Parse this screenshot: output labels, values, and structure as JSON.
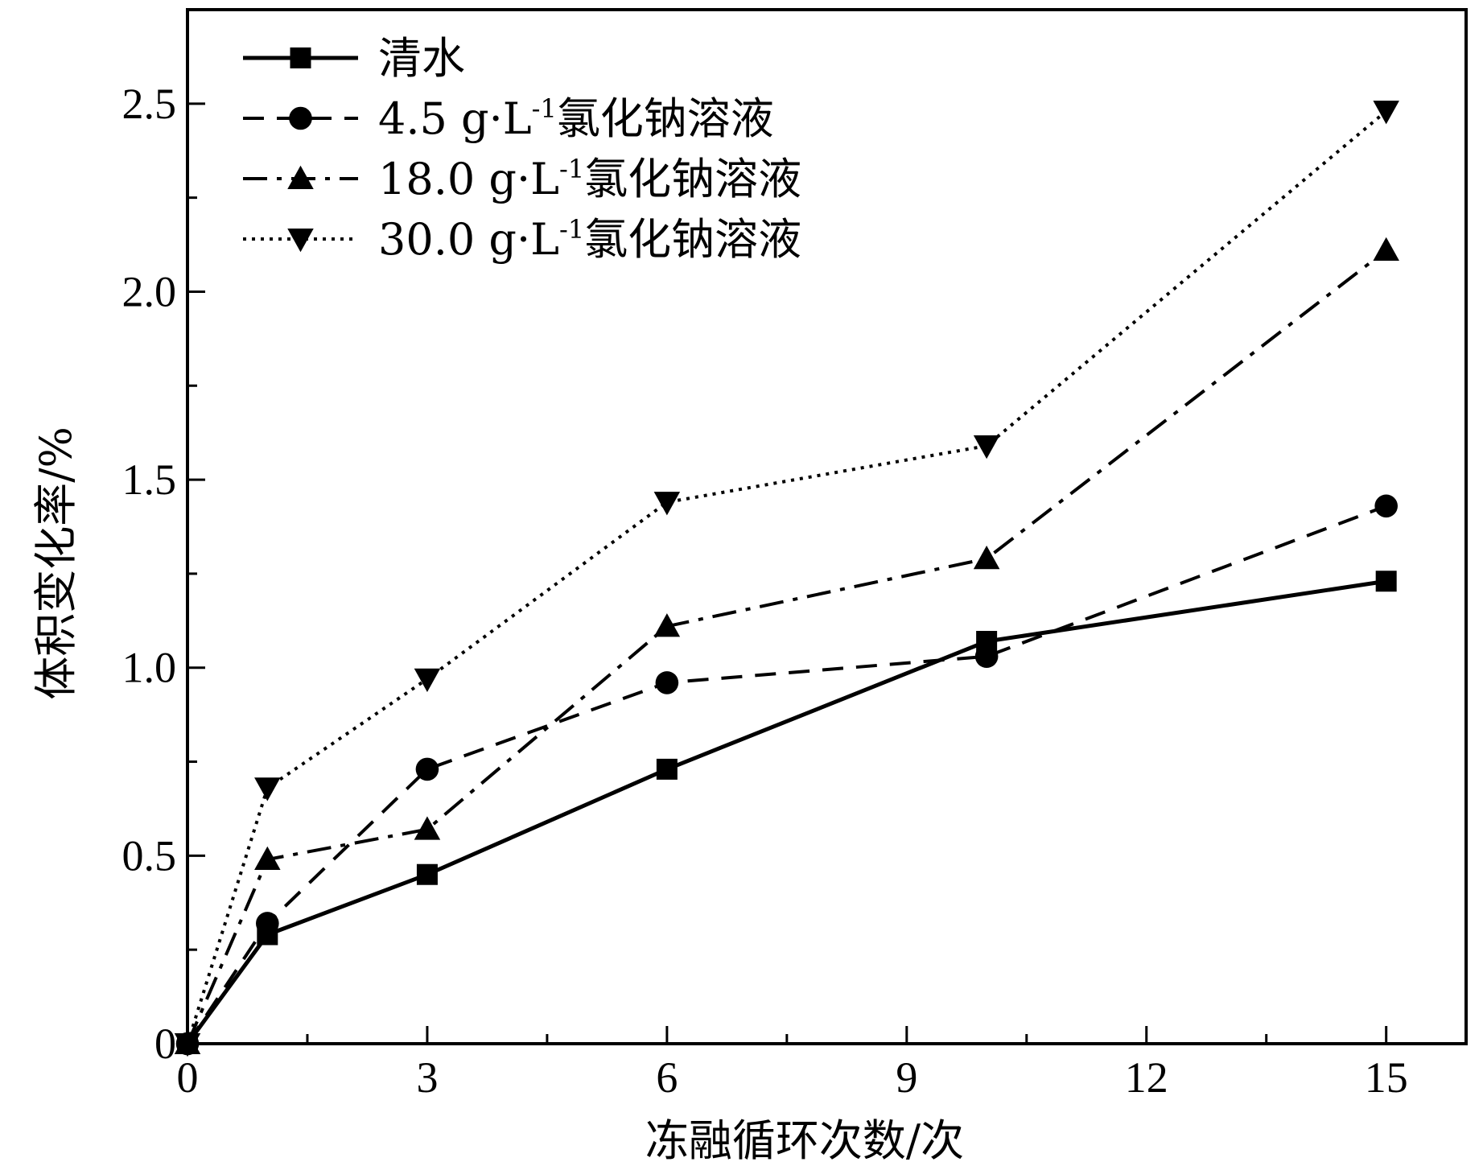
{
  "chart_data": {
    "type": "line",
    "xlabel": "冻融循环次数/次",
    "ylabel": "体积变化率/%",
    "xlim": [
      0,
      16
    ],
    "ylim": [
      0,
      2.75
    ],
    "xticks": [
      0,
      3,
      6,
      9,
      12,
      15
    ],
    "yticks": [
      0,
      0.5,
      1.0,
      1.5,
      2.0,
      2.5
    ],
    "xtick_labels": [
      "0",
      "3",
      "6",
      "9",
      "12",
      "15"
    ],
    "ytick_labels": [
      "0",
      "0.5",
      "1.0",
      "1.5",
      "2.0",
      "2.5"
    ],
    "grid": false,
    "legend_position": "top-left",
    "x": [
      0,
      1,
      3,
      6,
      10,
      15
    ],
    "series": [
      {
        "name": "清水",
        "legend_prefix": "",
        "legend_suffix": "",
        "marker": "square",
        "line_style": "solid",
        "color": "#000000",
        "values": [
          0,
          0.29,
          0.45,
          0.73,
          1.07,
          1.23
        ]
      },
      {
        "name": "4.5 g·L-1氯化钠溶液",
        "legend_prefix": "4.5 g·L",
        "legend_sup": "-1",
        "legend_suffix": "氯化钠溶液",
        "marker": "circle",
        "line_style": "dashed",
        "color": "#000000",
        "values": [
          0,
          0.32,
          0.73,
          0.96,
          1.03,
          1.43
        ]
      },
      {
        "name": "18.0 g·L-1氯化钠溶液",
        "legend_prefix": "18.0 g·L",
        "legend_sup": "-1",
        "legend_suffix": "氯化钠溶液",
        "marker": "triangle-up",
        "line_style": "dashdot",
        "color": "#000000",
        "values": [
          0,
          0.49,
          0.57,
          1.11,
          1.29,
          2.11
        ]
      },
      {
        "name": "30.0 g·L-1氯化钠溶液",
        "legend_prefix": "30.0 g·L",
        "legend_sup": "-1",
        "legend_suffix": "氯化钠溶液",
        "marker": "triangle-down",
        "line_style": "dotted",
        "color": "#000000",
        "values": [
          0,
          0.68,
          0.97,
          1.44,
          1.59,
          2.48
        ]
      }
    ]
  }
}
